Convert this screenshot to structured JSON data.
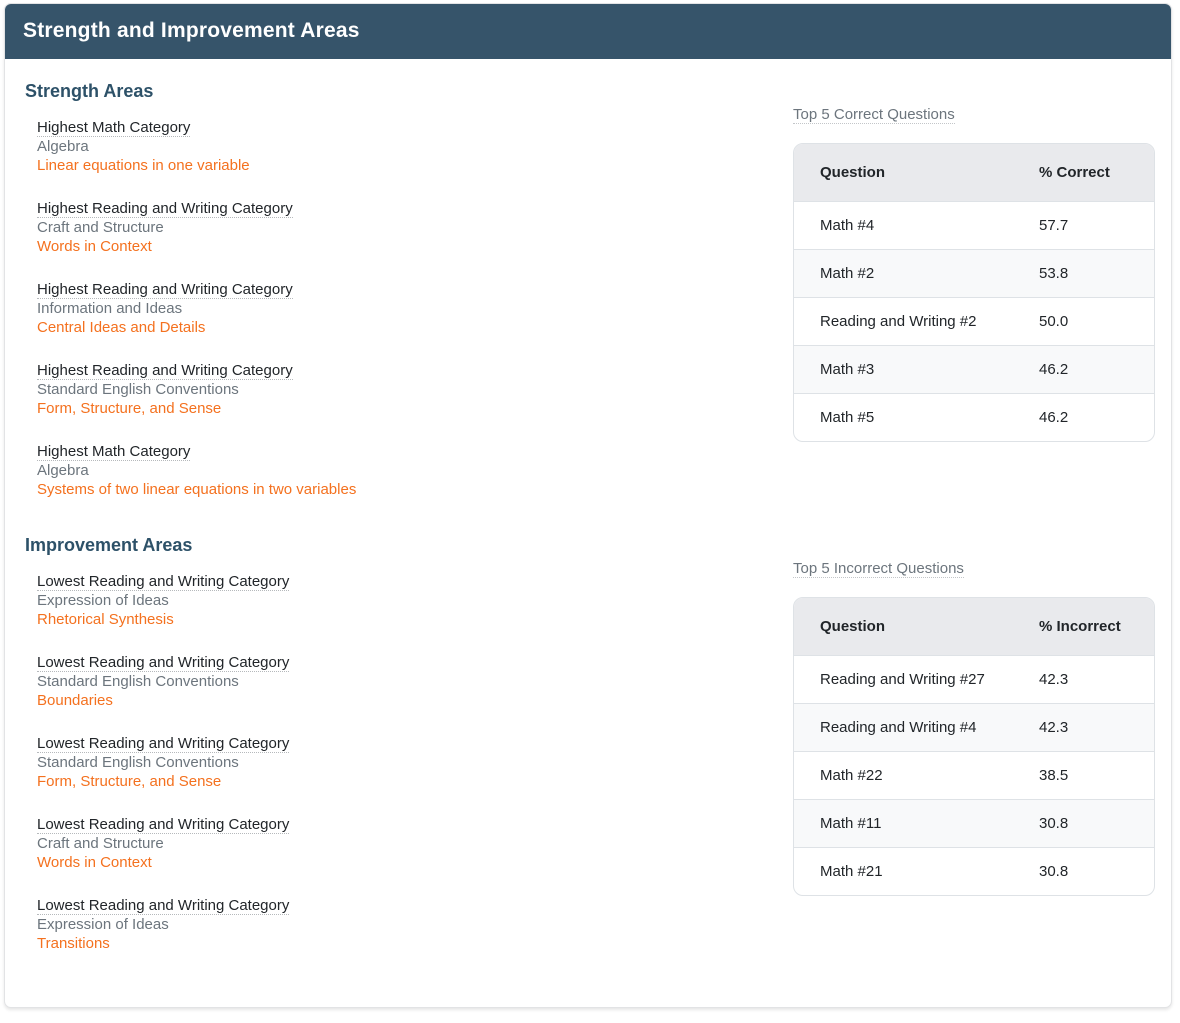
{
  "header": {
    "title": "Strength and Improvement Areas"
  },
  "strength": {
    "heading": "Strength Areas",
    "items": [
      {
        "title": "Highest Math Category",
        "category": "Algebra",
        "skill": "Linear equations in one variable"
      },
      {
        "title": "Highest Reading and Writing Category",
        "category": "Craft and Structure",
        "skill": "Words in Context"
      },
      {
        "title": "Highest Reading and Writing Category",
        "category": "Information and Ideas",
        "skill": "Central Ideas and Details"
      },
      {
        "title": "Highest Reading and Writing Category",
        "category": "Standard English Conventions",
        "skill": "Form, Structure, and Sense"
      },
      {
        "title": "Highest Math Category",
        "category": "Algebra",
        "skill": "Systems of two linear equations in two variables"
      }
    ],
    "table": {
      "label": "Top 5 Correct Questions",
      "columns": [
        "Question",
        "% Correct"
      ],
      "rows": [
        [
          "Math #4",
          "57.7"
        ],
        [
          "Math #2",
          "53.8"
        ],
        [
          "Reading and Writing #2",
          "50.0"
        ],
        [
          "Math #3",
          "46.2"
        ],
        [
          "Math #5",
          "46.2"
        ]
      ]
    }
  },
  "improvement": {
    "heading": "Improvement Areas",
    "items": [
      {
        "title": "Lowest Reading and Writing Category",
        "category": "Expression of Ideas",
        "skill": "Rhetorical Synthesis"
      },
      {
        "title": "Lowest Reading and Writing Category",
        "category": "Standard English Conventions",
        "skill": "Boundaries"
      },
      {
        "title": "Lowest Reading and Writing Category",
        "category": "Standard English Conventions",
        "skill": "Form, Structure, and Sense"
      },
      {
        "title": "Lowest Reading and Writing Category",
        "category": "Craft and Structure",
        "skill": "Words in Context"
      },
      {
        "title": "Lowest Reading and Writing Category",
        "category": "Expression of Ideas",
        "skill": "Transitions"
      }
    ],
    "table": {
      "label": "Top 5 Incorrect Questions",
      "columns": [
        "Question",
        "% Incorrect"
      ],
      "rows": [
        [
          "Reading and Writing #27",
          "42.3"
        ],
        [
          "Reading and Writing #4",
          "42.3"
        ],
        [
          "Math #22",
          "38.5"
        ],
        [
          "Math #11",
          "30.8"
        ],
        [
          "Math #21",
          "30.8"
        ]
      ]
    }
  },
  "colors": {
    "header_bg": "#36546a",
    "section_heading": "#2d5168",
    "link_orange": "#f4711f",
    "subtitle_gray": "#6c757d",
    "table_header_bg": "#e9eaed",
    "row_stripe": "#f8f9fa",
    "border": "#dee2e6"
  }
}
